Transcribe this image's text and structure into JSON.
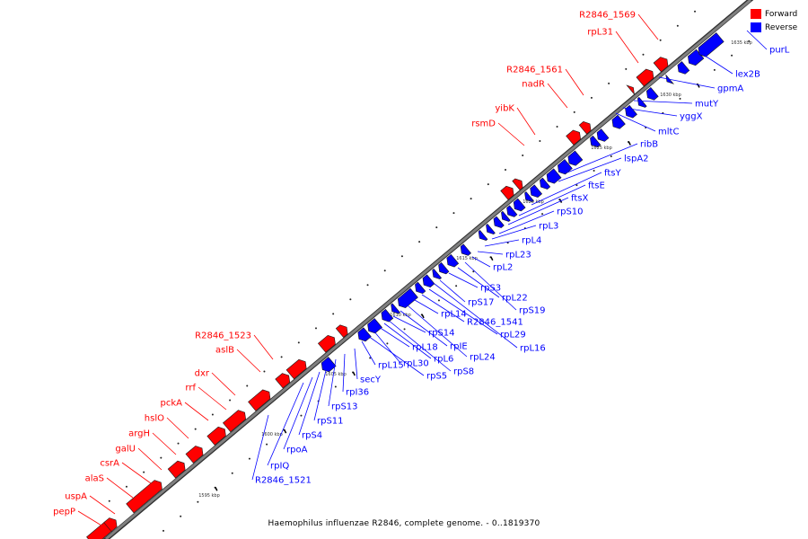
{
  "caption": "Haemophilus influenzae R2846, complete genome. - 0..1819370",
  "legend": [
    {
      "label": "Forward",
      "color": "#ff0000"
    },
    {
      "label": "Reverse",
      "color": "#0000ff"
    }
  ],
  "colors": {
    "forward": "#ff0000",
    "reverse": "#0000ff",
    "backbone": "#808080"
  },
  "scale_labels": [
    "1595 kbp",
    "1600 kbp",
    "1605 kbp",
    "1610 kbp",
    "1615 kbp",
    "1620 kbp",
    "1625 kbp",
    "1630 kbp",
    "1635 kbp"
  ],
  "forward_genes": [
    "pepP",
    "uspA",
    "alaS",
    "csrA",
    "galU",
    "argH",
    "hslO",
    "pckA",
    "rrf",
    "dxr",
    "aslB",
    "R2846_1523",
    "rsmD",
    "yibK",
    "nadR",
    "R2846_1561",
    "rpL31",
    "R2846_1569"
  ],
  "reverse_genes": [
    "R2846_1521",
    "rpIQ",
    "rpoA",
    "rpS4",
    "rpS11",
    "rpS13",
    "rpI36",
    "secY",
    "rpL15",
    "rpS5",
    "rpL30",
    "rpL18",
    "rpL6",
    "rpS8",
    "rpS14",
    "rpIE",
    "rpL24",
    "rpL14",
    "R2846_1541",
    "rpL29",
    "rpL16",
    "rpS17",
    "rpS3",
    "rpL22",
    "rpS19",
    "rpL2",
    "rpL23",
    "rpL4",
    "rpL3",
    "rpS10",
    "ftsX",
    "ftsE",
    "ftsY",
    "lspA2",
    "ribB",
    "mltC",
    "yggX",
    "mutY",
    "gpmA",
    "lex2B",
    "purL"
  ]
}
